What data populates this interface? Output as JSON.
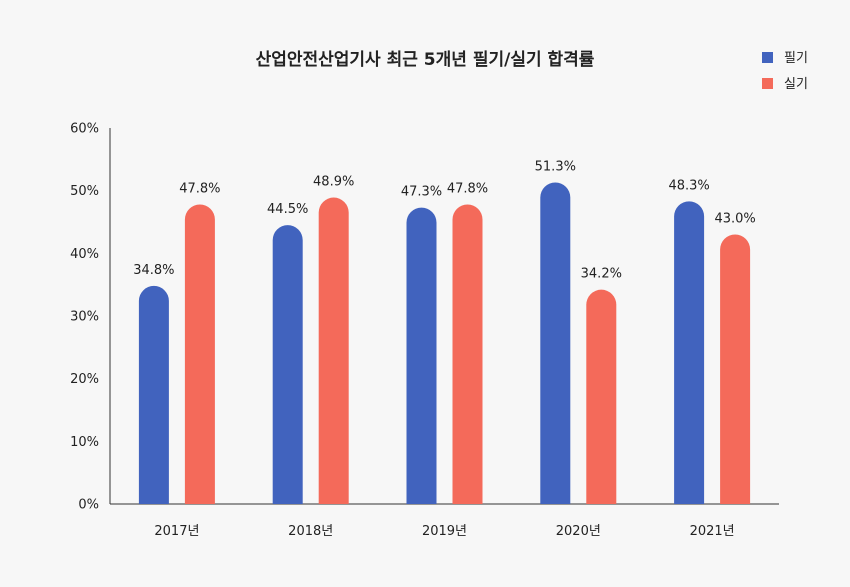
{
  "chart_data": {
    "type": "bar",
    "title": "산업안전산업기사 최근 5개년 필기/실기 합격률",
    "categories": [
      "2017년",
      "2018년",
      "2019년",
      "2020년",
      "2021년"
    ],
    "series": [
      {
        "name": "필기",
        "color": "#4163be",
        "values": [
          34.8,
          44.5,
          47.3,
          51.3,
          48.3
        ],
        "labels": [
          "34.8%",
          "44.5%",
          "47.3%",
          "51.3%",
          "48.3%"
        ]
      },
      {
        "name": "실기",
        "color": "#f46a5a",
        "values": [
          47.8,
          48.9,
          47.8,
          34.2,
          43.0
        ],
        "labels": [
          "47.8%",
          "48.9%",
          "47.8%",
          "34.2%",
          "43.0%"
        ]
      }
    ],
    "ylim": [
      0,
      60
    ],
    "yticks": [
      "0%",
      "10%",
      "20%",
      "30%",
      "40%",
      "50%",
      "60%"
    ],
    "xlabel": "",
    "ylabel": "",
    "grid": false,
    "legend_position": "top-right"
  }
}
